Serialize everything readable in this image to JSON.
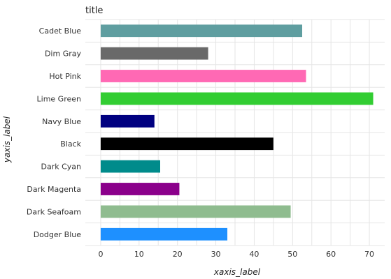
{
  "chart_data": {
    "type": "bar",
    "orientation": "horizontal",
    "title": "title",
    "xlabel": "xaxis_label",
    "ylabel": "yaxis_label",
    "categories": [
      "Dodger Blue",
      "Dark Seafoam",
      "Dark Magenta",
      "Dark Cyan",
      "Black",
      "Navy Blue",
      "Lime Green",
      "Hot Pink",
      "Dim Gray",
      "Cadet Blue"
    ],
    "values": [
      33,
      49.5,
      20.5,
      15.5,
      45,
      14,
      71,
      53.5,
      28,
      52.5
    ],
    "colors": [
      "#1e90ff",
      "#8fbc8f",
      "#8b008b",
      "#008b8b",
      "#000000",
      "#000080",
      "#32cd32",
      "#ff69b4",
      "#696969",
      "#5f9ea0"
    ],
    "x_ticks": [
      "0",
      "10",
      "20",
      "30",
      "40",
      "50",
      "60",
      "70"
    ],
    "xlim": [
      -4,
      74
    ],
    "grid": true
  }
}
